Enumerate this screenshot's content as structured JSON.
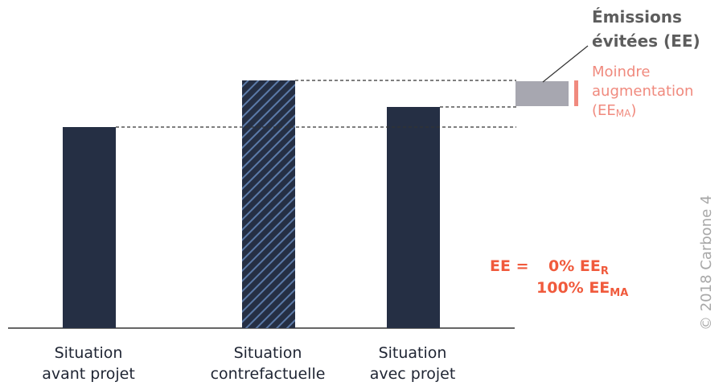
{
  "chart_data": {
    "type": "bar",
    "categories": [
      [
        "Situation",
        "avant projet"
      ],
      [
        "Situation",
        "contrefactuelle"
      ],
      [
        "Situation",
        "avec projet"
      ]
    ],
    "values": [
      250,
      308,
      275
    ],
    "patterns": [
      "solid",
      "hatched",
      "solid"
    ],
    "emissions_evitees_band": [
      275,
      308
    ]
  },
  "legend": {
    "ee_line1": "Émissions",
    "ee_line2": "évitées (EE)",
    "ma_line1": "Moindre",
    "ma_line2": "augmentation",
    "ma_line3_open": "(EE",
    "ma_line3_sub": "MA",
    "ma_line3_close": ")"
  },
  "formula": {
    "prefix": "EE =",
    "line1_pct": "0% EE",
    "line1_sub": "R",
    "line2_pct": "100% EE",
    "line2_sub": "MA"
  },
  "copyright": "© 2018 Carbone 4",
  "colors": {
    "bar": "#252f44",
    "hatch": "#5b7aa8",
    "gray_box": "#a7a7b0",
    "salmon": "#f08a7e",
    "formula": "#f05a3c"
  }
}
